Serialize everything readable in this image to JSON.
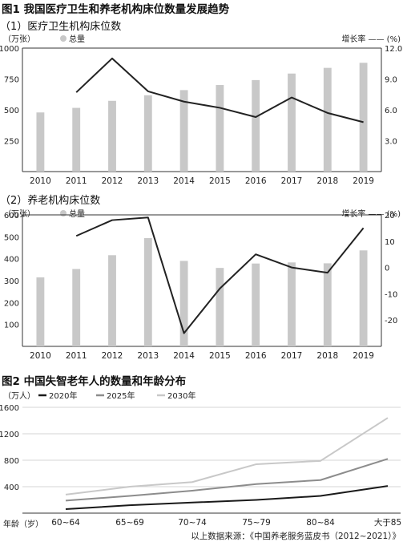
{
  "figure1": {
    "title": "图1  我国医疗卫生和养老机构床位数量发展趋势",
    "bar_color": "#c8c8c8",
    "line_color": "#222222"
  },
  "figure2": {
    "title": "图2  中国失智老年人的数量和年龄分布"
  },
  "source": "以上数据来源：《中国养老服务蓝皮书（2012~2021）》",
  "chart_data": [
    {
      "type": "bar",
      "title": "（1）医疗卫生机构床位数",
      "ylabel": "（万张）",
      "y2label": "增长率 —— (%)",
      "legend": "总量",
      "categories": [
        "2010",
        "2011",
        "2012",
        "2013",
        "2014",
        "2015",
        "2016",
        "2017",
        "2018",
        "2019"
      ],
      "ylim": [
        0,
        1000
      ],
      "yticks": [
        250,
        500,
        750,
        1000
      ],
      "y2lim": [
        0,
        12
      ],
      "y2ticks": [
        "3.0",
        "6.0",
        "9.0",
        "12.0"
      ],
      "series": [
        {
          "name": "总量",
          "type": "bar",
          "values": [
            479,
            516,
            573,
            618,
            660,
            701,
            741,
            794,
            840,
            881
          ]
        },
        {
          "name": "增长率",
          "type": "line",
          "axis": "right",
          "values": [
            null,
            7.7,
            11.0,
            7.8,
            6.8,
            6.2,
            5.3,
            7.2,
            5.7,
            4.8
          ]
        }
      ],
      "grid": false
    },
    {
      "type": "bar",
      "title": "（2）养老机构床位数",
      "ylabel": "（万张）",
      "y2label": "增长率 —— (%)",
      "legend": "总量",
      "categories": [
        "2010",
        "2011",
        "2012",
        "2013",
        "2014",
        "2015",
        "2016",
        "2017",
        "2018",
        "2019"
      ],
      "ylim": [
        0,
        600
      ],
      "yticks": [
        100,
        200,
        300,
        400,
        500,
        600
      ],
      "y2lim": [
        -30,
        20
      ],
      "y2ticks": [
        "-20",
        "-10",
        "0",
        "10",
        "20"
      ],
      "series": [
        {
          "name": "总量",
          "type": "bar",
          "values": [
            315,
            353,
            416,
            494,
            390,
            358,
            378,
            383,
            379,
            438
          ]
        },
        {
          "name": "增长率",
          "type": "line",
          "axis": "right",
          "values": [
            null,
            12,
            18,
            19,
            -25,
            -8,
            5,
            0,
            -2,
            15
          ]
        }
      ],
      "grid": false
    },
    {
      "type": "line",
      "ylabel": "（万人）",
      "xlabel": "年龄（岁）",
      "categories": [
        "60~64",
        "65~69",
        "70~74",
        "75~79",
        "80~84",
        "大于85"
      ],
      "ylim": [
        0,
        1600
      ],
      "yticks": [
        400,
        800,
        1200,
        1600
      ],
      "legend_position": "top",
      "series": [
        {
          "name": "2020年",
          "color": "#1a1a1a",
          "values": [
            60,
            120,
            160,
            200,
            260,
            410
          ]
        },
        {
          "name": "2025年",
          "color": "#8c8c8c",
          "values": [
            190,
            260,
            340,
            440,
            500,
            820
          ]
        },
        {
          "name": "2030年",
          "color": "#c8c8c8",
          "values": [
            280,
            400,
            470,
            740,
            790,
            1440
          ]
        }
      ],
      "grid": true
    }
  ]
}
